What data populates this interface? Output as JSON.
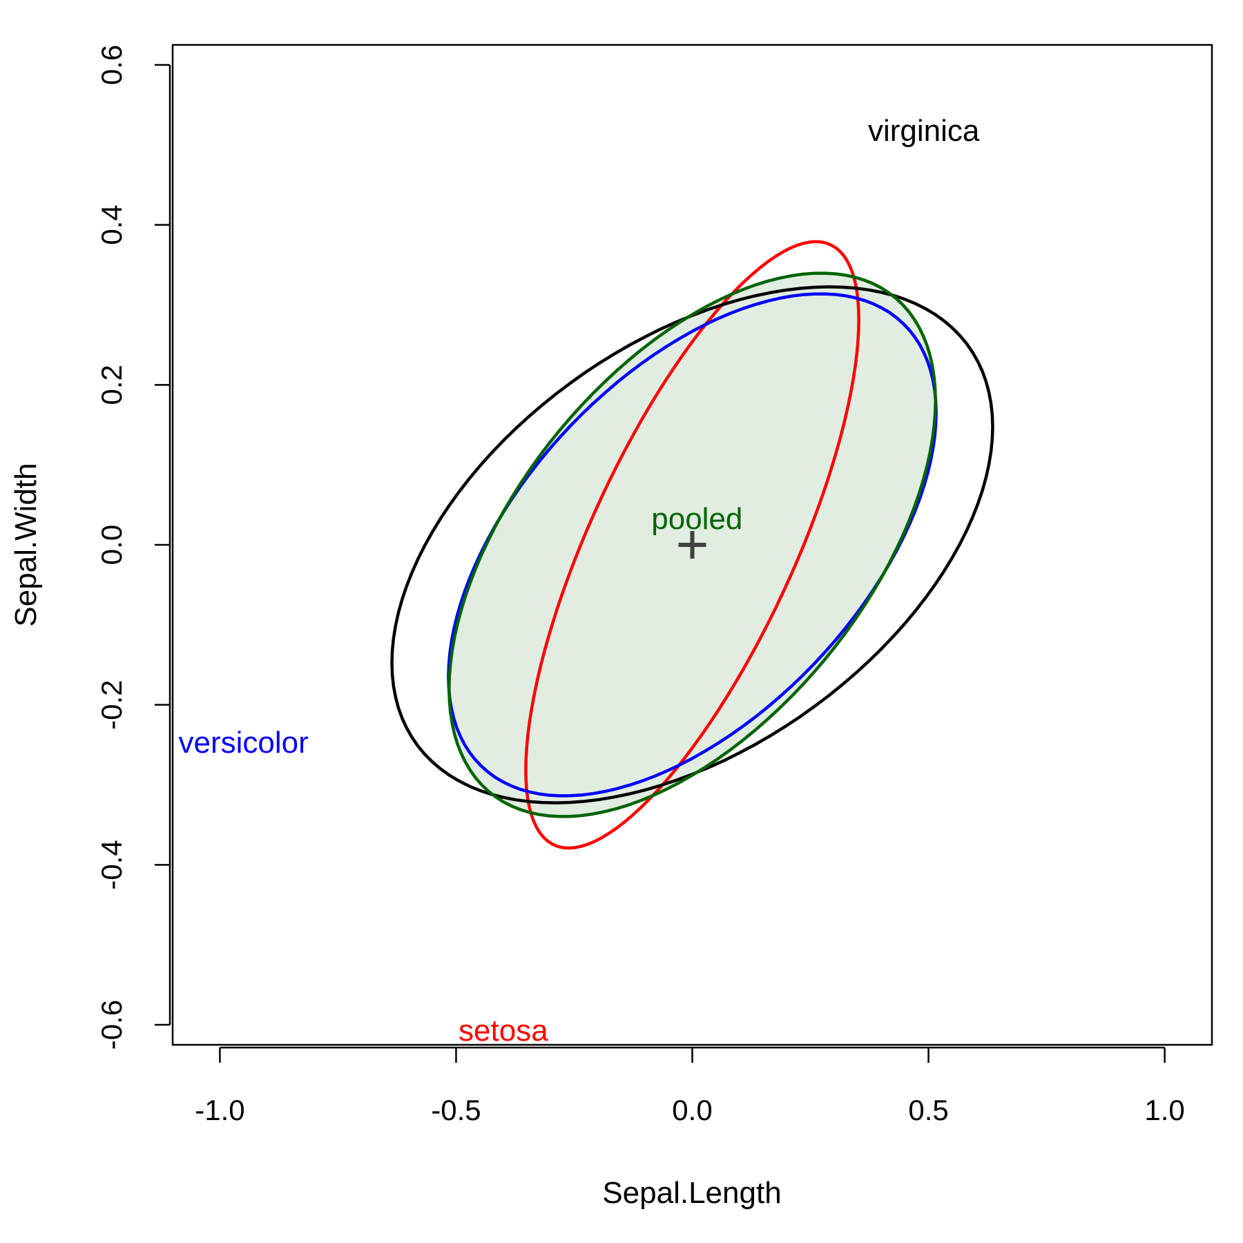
{
  "chart_data": {
    "type": "scatter",
    "xlabel": "Sepal.Length",
    "ylabel": "Sepal.Width",
    "xlim": [
      -1.1,
      1.1
    ],
    "ylim": [
      -0.625,
      0.625
    ],
    "x_ticks": [
      -1.0,
      -0.5,
      0.0,
      0.5,
      1.0
    ],
    "x_tick_labels": [
      "-1.0",
      "-0.5",
      "0.0",
      "0.5",
      "1.0"
    ],
    "y_ticks": [
      -0.6,
      -0.4,
      -0.2,
      0.0,
      0.2,
      0.4,
      0.6
    ],
    "y_tick_labels": [
      "-0.6",
      "-0.4",
      "-0.2",
      "0.0",
      "0.2",
      "0.4",
      "0.6"
    ],
    "grid": false,
    "center_marker": {
      "x": 0,
      "y": 0,
      "color": "#404040"
    },
    "series": [
      {
        "name": "setosa",
        "color": "#ff0000",
        "fill": "none",
        "cov": [
          [
            0.124249,
            0.099216
          ],
          [
            0.099216,
            0.14369
          ]
        ],
        "label": {
          "text": "setosa",
          "x": -0.4,
          "y": -0.61
        }
      },
      {
        "name": "versicolor",
        "color": "#0000ff",
        "fill": "none",
        "cov": [
          [
            0.266433,
            0.085184
          ],
          [
            0.085184,
            0.098469
          ]
        ],
        "label": {
          "text": "versicolor",
          "x": -0.95,
          "y": -0.25
        }
      },
      {
        "name": "virginica",
        "color": "#000000",
        "fill": "none",
        "cov": [
          [
            0.404343,
            0.093763
          ],
          [
            0.093763,
            0.104004
          ]
        ],
        "label": {
          "text": "virginica",
          "x": 0.49,
          "y": 0.515
        }
      },
      {
        "name": "pooled",
        "color": "#006400",
        "fill": "#e1ede1",
        "cov": [
          [
            0.265008,
            0.092721
          ],
          [
            0.092721,
            0.115388
          ]
        ],
        "label": {
          "text": "pooled",
          "x": 0.01,
          "y": 0.03
        }
      }
    ]
  }
}
